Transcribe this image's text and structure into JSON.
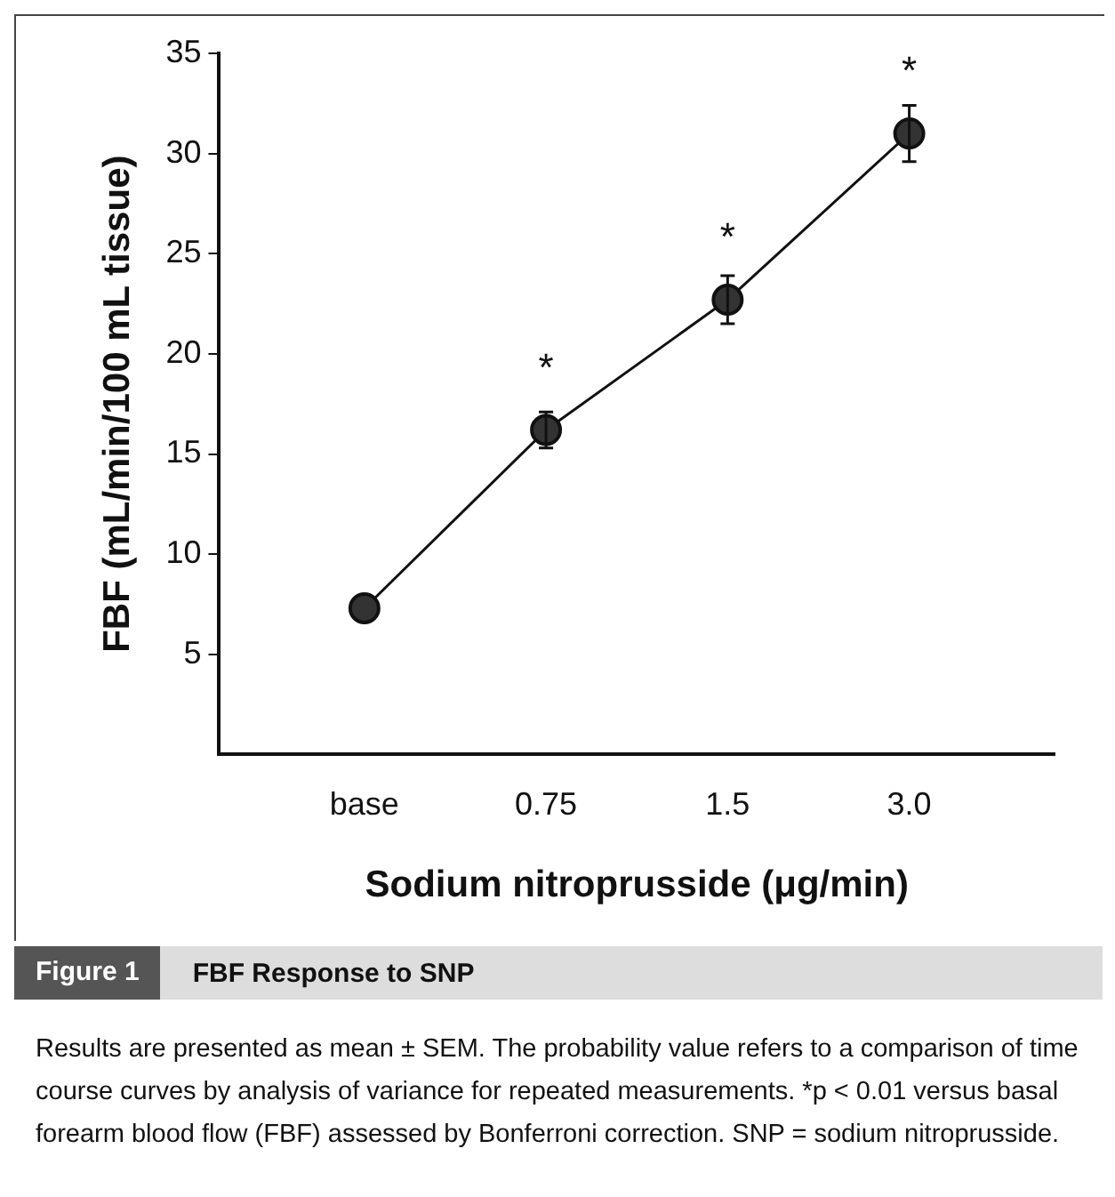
{
  "chart_data": {
    "type": "line",
    "title": "FBF Response to SNP",
    "xlabel": "Sodium nitroprusside (μg/min)",
    "ylabel": "FBF (mL/min/100 mL tissue)",
    "categories": [
      "base",
      "0.75",
      "1.5",
      "3.0"
    ],
    "series": [
      {
        "color": "#333333",
        "values": [
          7.3,
          16.2,
          22.7,
          31.0
        ],
        "errors": [
          null,
          0.9,
          1.2,
          1.4
        ]
      }
    ],
    "ylim": [
      0,
      35
    ],
    "yticks": [
      5,
      10,
      15,
      20,
      25,
      30,
      35
    ],
    "grid": false,
    "legend": false,
    "marker": "circle",
    "line_style": "solid",
    "annotations": [
      "Figure 1",
      {
        "text": "*",
        "x": "0.75",
        "y": 16.2
      },
      {
        "text": "*",
        "x": "1.5",
        "y": 22.7
      },
      {
        "text": "*",
        "x": "3.0",
        "y": 31.0
      },
      "Results are presented as mean ± SEM. The probability value refers to a comparison of time course curves by analysis of variance for repeated measurements. *p < 0.01 versus basal forearm blood flow (FBF) assessed by Bonferroni correction. SNP = sodium nitroprusside."
    ]
  }
}
